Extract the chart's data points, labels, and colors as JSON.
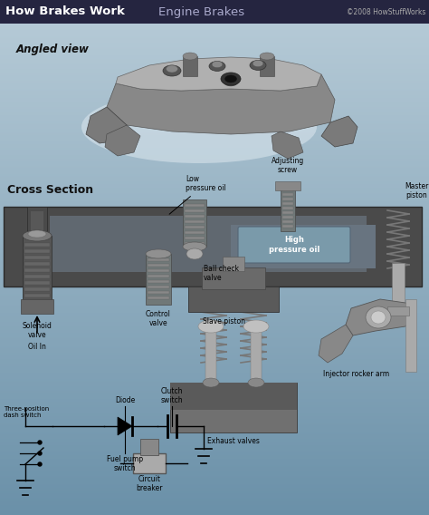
{
  "title_left": "How Brakes Work",
  "title_right": "Engine Brakes",
  "copyright": "©2008 HowStuffWorks",
  "header_bg": "#2a2a4a",
  "bg_top": "#b8ccd8",
  "bg_mid": "#8aaec0",
  "bg_bot": "#7aa0b8",
  "angled_view_label": "Angled view",
  "cross_section_label": "Cross Section",
  "figsize": [
    4.74,
    5.68
  ],
  "dpi": 100
}
